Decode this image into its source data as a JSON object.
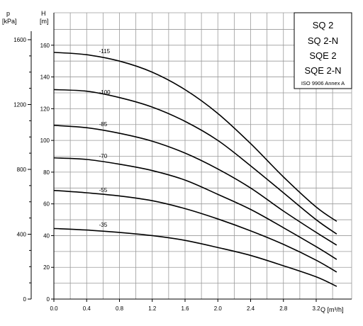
{
  "chart_data": {
    "type": "line",
    "xlabel": "Q [m³/h]",
    "ylabel": "H",
    "ylabel_unit": "[m]",
    "y2label": "p",
    "y2label_unit": "[kPa]",
    "xlim": [
      0,
      3.2
    ],
    "ylim": [
      0,
      170
    ],
    "y2lim": [
      0,
      1700
    ],
    "x_ticks": [
      "0.0",
      "0.4",
      "0.8",
      "1.2",
      "1.6",
      "2.0",
      "2.4",
      "2.8",
      "3.2"
    ],
    "y_ticks": [
      "0",
      "20",
      "40",
      "60",
      "80",
      "100",
      "120",
      "140",
      "160"
    ],
    "y2_ticks": [
      "0",
      "400",
      "800",
      "1200",
      "1600"
    ],
    "grid": true,
    "legend": {
      "placement": "top-right",
      "titles": [
        "SQ 2",
        "SQ 2-N",
        "SQE 2",
        "SQE 2-N"
      ],
      "note": "ISO 9906 Annex A"
    },
    "series": [
      {
        "name": "-115",
        "label_at": [
          0.55,
          155
        ],
        "x": [
          0,
          0.4,
          0.8,
          1.2,
          1.6,
          2.0,
          2.4,
          2.8,
          3.2,
          3.45
        ],
        "y": [
          155.5,
          154,
          150,
          143,
          132,
          117,
          98,
          77,
          58,
          49
        ]
      },
      {
        "name": "-100",
        "label_at": [
          0.55,
          129
        ],
        "x": [
          0,
          0.4,
          0.8,
          1.2,
          1.6,
          2.0,
          2.4,
          2.8,
          3.2,
          3.45
        ],
        "y": [
          132,
          131,
          127,
          121,
          112,
          100,
          84,
          67,
          50,
          41
        ]
      },
      {
        "name": "-85",
        "label_at": [
          0.55,
          109
        ],
        "x": [
          0,
          0.4,
          0.8,
          1.2,
          1.6,
          2.0,
          2.4,
          2.8,
          3.2,
          3.45
        ],
        "y": [
          109.5,
          108,
          104.5,
          99.5,
          92,
          82,
          70,
          55.5,
          42,
          34
        ]
      },
      {
        "name": "-70",
        "label_at": [
          0.55,
          89
        ],
        "x": [
          0,
          0.4,
          0.8,
          1.2,
          1.6,
          2.0,
          2.4,
          2.8,
          3.2,
          3.45
        ],
        "y": [
          89,
          88,
          85,
          81,
          75,
          66,
          56.5,
          45,
          33,
          25
        ]
      },
      {
        "name": "-55",
        "label_at": [
          0.55,
          67.5
        ],
        "x": [
          0,
          0.4,
          0.8,
          1.2,
          1.6,
          2.0,
          2.4,
          2.8,
          3.2,
          3.45
        ],
        "y": [
          68.5,
          67,
          65,
          62,
          57,
          50.5,
          43,
          34.5,
          24.5,
          17
        ]
      },
      {
        "name": "-35",
        "label_at": [
          0.55,
          45.5
        ],
        "x": [
          0,
          0.4,
          0.8,
          1.2,
          1.6,
          2.0,
          2.4,
          2.8,
          3.2,
          3.45
        ],
        "y": [
          44.5,
          43.5,
          42,
          40,
          37,
          32.5,
          27.5,
          21,
          14,
          8
        ]
      }
    ]
  }
}
